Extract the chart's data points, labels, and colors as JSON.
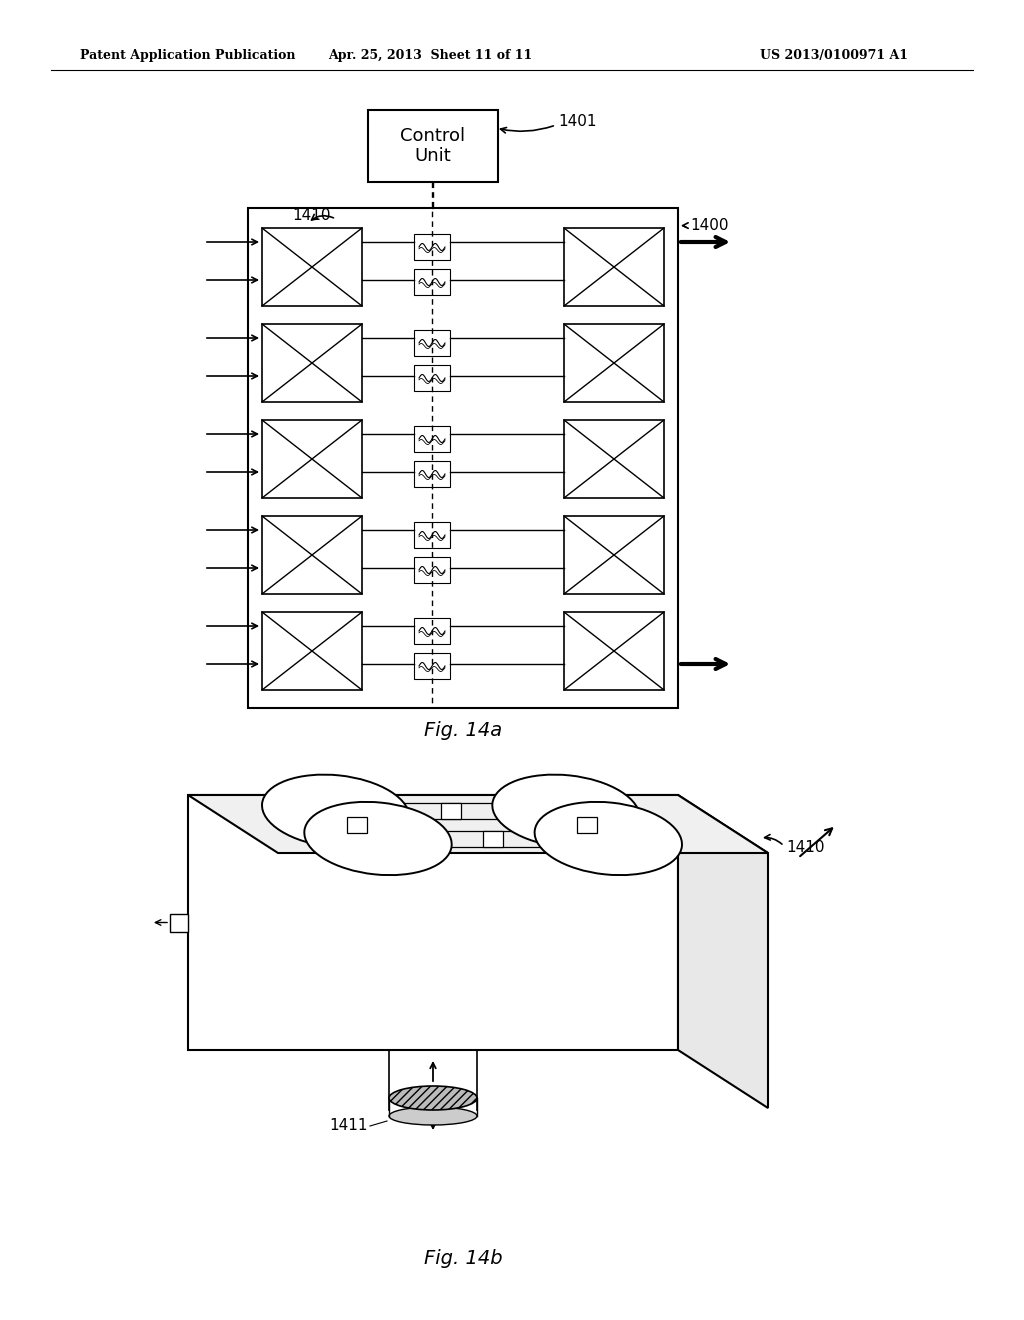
{
  "bg_color": "#ffffff",
  "header_left": "Patent Application Publication",
  "header_mid": "Apr. 25, 2013  Sheet 11 of 11",
  "header_right": "US 2013/0100971 A1",
  "fig14a_label": "Fig. 14a",
  "fig14b_label": "Fig. 14b",
  "label_1400": "1400",
  "label_1401": "1401",
  "label_1410a": "1410",
  "label_1410b": "1410",
  "label_1411": "1411",
  "control_unit_text": "Control\nUnit",
  "num_rows": 5
}
